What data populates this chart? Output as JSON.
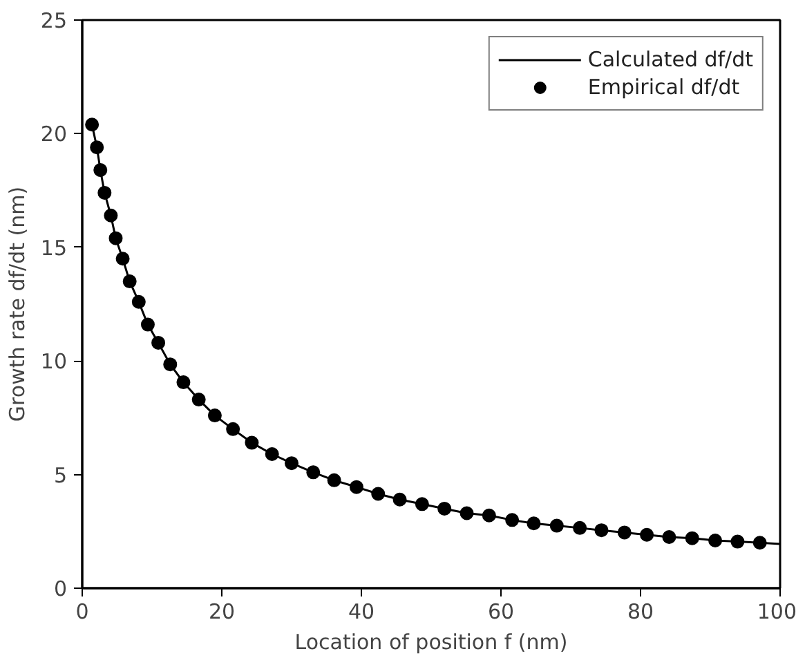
{
  "chart_data": {
    "type": "scatter",
    "xlabel": "Location of position f (nm)",
    "ylabel": "Growth rate df/dt (nm)",
    "xlim": [
      0,
      100
    ],
    "ylim": [
      0,
      25
    ],
    "xticks": [
      0,
      20,
      40,
      60,
      80,
      100
    ],
    "yticks": [
      0,
      5,
      10,
      15,
      20,
      25
    ],
    "grid": false,
    "legend": "top right",
    "series": [
      {
        "name": "Calculated df/dt",
        "type": "line",
        "color": "#000000",
        "marker": "none",
        "line_style": "solid",
        "x": [
          1.4,
          2.1,
          2.6,
          3.2,
          4.1,
          4.8,
          5.8,
          6.8,
          8.1,
          9.4,
          10.9,
          12.6,
          14.5,
          16.7,
          19.0,
          21.6,
          24.3,
          27.2,
          30.0,
          33.1,
          36.1,
          39.3,
          42.4,
          45.5,
          48.7,
          51.9,
          55.1,
          58.3,
          61.6,
          64.7,
          68.0,
          71.3,
          74.4,
          77.7,
          80.9,
          84.1,
          87.4,
          90.7,
          93.9,
          97.1,
          100
        ],
        "values": [
          20.4,
          19.4,
          18.4,
          17.4,
          16.4,
          15.4,
          14.5,
          13.5,
          12.6,
          11.6,
          10.8,
          9.85,
          9.06,
          8.3,
          7.6,
          7.0,
          6.4,
          5.9,
          5.5,
          5.1,
          4.75,
          4.45,
          4.15,
          3.9,
          3.7,
          3.5,
          3.3,
          3.2,
          3.0,
          2.85,
          2.75,
          2.65,
          2.55,
          2.45,
          2.35,
          2.25,
          2.2,
          2.1,
          2.05,
          2.0,
          1.95
        ]
      },
      {
        "name": "Empirical df/dt",
        "color": "#000000",
        "marker": "circle",
        "x": [
          1.4,
          2.1,
          2.6,
          3.2,
          4.1,
          4.8,
          5.8,
          6.8,
          8.1,
          9.4,
          10.9,
          12.6,
          14.5,
          16.7,
          19.0,
          21.6,
          24.3,
          27.2,
          30.0,
          33.1,
          36.1,
          39.3,
          42.4,
          45.5,
          48.7,
          51.9,
          55.1,
          58.3,
          61.6,
          64.7,
          68.0,
          71.3,
          74.4,
          77.7,
          80.9,
          84.1,
          87.4,
          90.7,
          93.9,
          97.1
        ],
        "values": [
          20.4,
          19.4,
          18.4,
          17.4,
          16.4,
          15.4,
          14.5,
          13.5,
          12.6,
          11.6,
          10.8,
          9.85,
          9.06,
          8.3,
          7.6,
          7.0,
          6.4,
          5.9,
          5.5,
          5.1,
          4.75,
          4.45,
          4.15,
          3.9,
          3.7,
          3.5,
          3.3,
          3.2,
          3.0,
          2.85,
          2.75,
          2.65,
          2.55,
          2.45,
          2.35,
          2.25,
          2.2,
          2.1,
          2.05,
          2.0
        ]
      }
    ]
  }
}
